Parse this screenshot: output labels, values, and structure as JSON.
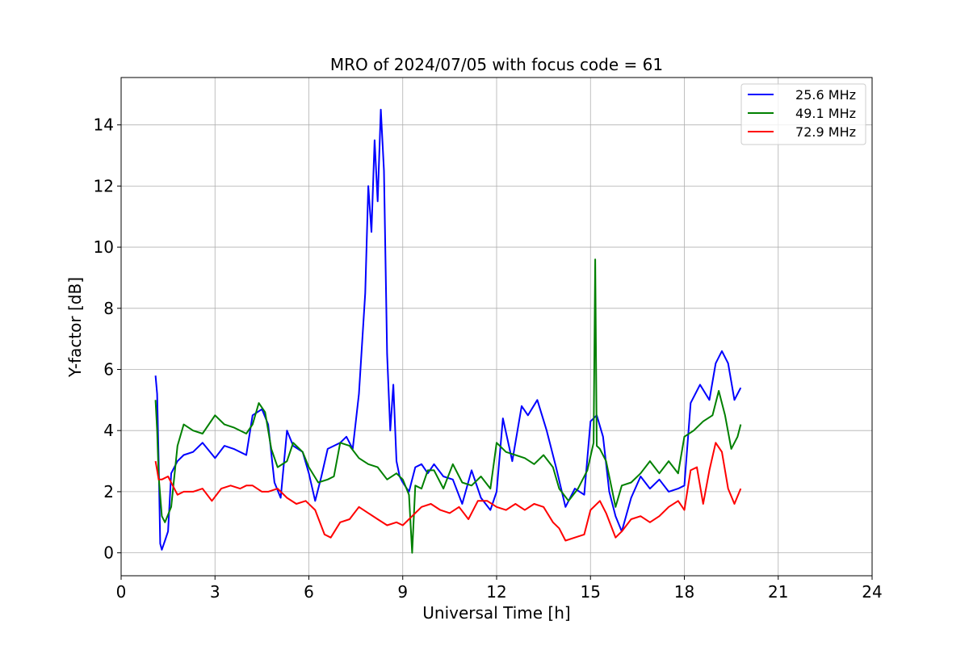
{
  "chart_data": {
    "type": "line",
    "title": "MRO of 2024/07/05 with focus code = 61",
    "xlabel": "Universal Time [h]",
    "ylabel": "Y-factor [dB]",
    "xlim": [
      0,
      24
    ],
    "ylim": [
      -0.75,
      15.55
    ],
    "xticks": [
      0,
      3,
      6,
      9,
      12,
      15,
      18,
      21,
      24
    ],
    "yticks": [
      0,
      2,
      4,
      6,
      8,
      10,
      12,
      14
    ],
    "grid": true,
    "legend_position": "top-right",
    "series": [
      {
        "name": "25.6 MHz",
        "color": "#0000ff",
        "x": [
          1.1,
          1.15,
          1.2,
          1.25,
          1.3,
          1.4,
          1.5,
          1.6,
          1.8,
          2.0,
          2.3,
          2.6,
          3.0,
          3.3,
          3.6,
          4.0,
          4.2,
          4.5,
          4.7,
          4.9,
          5.1,
          5.3,
          5.5,
          5.8,
          6.0,
          6.2,
          6.4,
          6.6,
          6.8,
          7.0,
          7.2,
          7.4,
          7.6,
          7.8,
          7.9,
          8.0,
          8.1,
          8.2,
          8.3,
          8.4,
          8.5,
          8.6,
          8.7,
          8.8,
          8.9,
          9.0,
          9.2,
          9.4,
          9.6,
          9.8,
          10.0,
          10.3,
          10.6,
          10.9,
          11.2,
          11.5,
          11.8,
          12.0,
          12.2,
          12.5,
          12.8,
          13.0,
          13.3,
          13.6,
          13.9,
          14.2,
          14.5,
          14.8,
          15.0,
          15.2,
          15.4,
          15.6,
          15.8,
          16.0,
          16.3,
          16.6,
          16.9,
          17.2,
          17.5,
          17.8,
          18.0,
          18.2,
          18.5,
          18.8,
          19.0,
          19.2,
          19.4,
          19.6,
          19.8
        ],
        "values": [
          5.8,
          5.2,
          3.0,
          0.3,
          0.1,
          0.4,
          0.7,
          2.6,
          3.0,
          3.2,
          3.3,
          3.6,
          3.1,
          3.5,
          3.4,
          3.2,
          4.5,
          4.7,
          4.2,
          2.3,
          1.8,
          4.0,
          3.5,
          3.3,
          2.6,
          1.7,
          2.5,
          3.4,
          3.5,
          3.6,
          3.8,
          3.4,
          5.2,
          8.5,
          12.0,
          10.5,
          13.5,
          11.5,
          14.5,
          12.5,
          6.5,
          4.0,
          5.5,
          3.0,
          2.5,
          2.3,
          2.0,
          2.8,
          2.9,
          2.6,
          2.9,
          2.5,
          2.4,
          1.6,
          2.7,
          1.8,
          1.4,
          2.0,
          4.4,
          3.0,
          4.8,
          4.5,
          5.0,
          4.0,
          2.8,
          1.5,
          2.1,
          1.9,
          4.3,
          4.5,
          3.8,
          2.0,
          1.2,
          0.7,
          1.8,
          2.5,
          2.1,
          2.4,
          2.0,
          2.1,
          2.2,
          4.9,
          5.5,
          5.0,
          6.2,
          6.6,
          6.2,
          5.0,
          5.4
        ]
      },
      {
        "name": "49.1 MHz",
        "color": "#008000",
        "x": [
          1.1,
          1.15,
          1.2,
          1.3,
          1.4,
          1.6,
          1.8,
          2.0,
          2.3,
          2.6,
          3.0,
          3.3,
          3.6,
          4.0,
          4.2,
          4.4,
          4.6,
          4.8,
          5.0,
          5.3,
          5.5,
          5.8,
          6.0,
          6.3,
          6.6,
          6.8,
          7.0,
          7.3,
          7.6,
          7.9,
          8.2,
          8.5,
          8.8,
          9.0,
          9.2,
          9.3,
          9.4,
          9.6,
          9.8,
          10.0,
          10.3,
          10.6,
          10.9,
          11.2,
          11.5,
          11.8,
          12.0,
          12.3,
          12.6,
          12.9,
          13.2,
          13.5,
          13.8,
          14.0,
          14.3,
          14.6,
          14.9,
          15.1,
          15.15,
          15.2,
          15.3,
          15.5,
          15.8,
          16.0,
          16.3,
          16.6,
          16.9,
          17.2,
          17.5,
          17.8,
          18.0,
          18.3,
          18.6,
          18.9,
          19.1,
          19.3,
          19.5,
          19.7,
          19.8
        ],
        "values": [
          5.0,
          4.0,
          2.5,
          1.2,
          1.0,
          1.5,
          3.5,
          4.2,
          4.0,
          3.9,
          4.5,
          4.2,
          4.1,
          3.9,
          4.2,
          4.9,
          4.6,
          3.4,
          2.8,
          3.0,
          3.6,
          3.3,
          2.8,
          2.3,
          2.4,
          2.5,
          3.6,
          3.5,
          3.1,
          2.9,
          2.8,
          2.4,
          2.6,
          2.4,
          1.9,
          0.0,
          2.2,
          2.1,
          2.7,
          2.7,
          2.1,
          2.9,
          2.3,
          2.2,
          2.5,
          2.1,
          3.6,
          3.3,
          3.2,
          3.1,
          2.9,
          3.2,
          2.8,
          2.1,
          1.7,
          2.1,
          2.7,
          3.6,
          9.6,
          3.5,
          3.4,
          3.0,
          1.5,
          2.2,
          2.3,
          2.6,
          3.0,
          2.6,
          3.0,
          2.6,
          3.8,
          4.0,
          4.3,
          4.5,
          5.3,
          4.5,
          3.4,
          3.8,
          4.2
        ]
      },
      {
        "name": "72.9 MHz",
        "color": "#ff0000",
        "x": [
          1.1,
          1.15,
          1.2,
          1.3,
          1.5,
          1.8,
          2.0,
          2.3,
          2.6,
          2.9,
          3.2,
          3.5,
          3.8,
          4.0,
          4.2,
          4.5,
          4.7,
          5.0,
          5.3,
          5.6,
          5.9,
          6.2,
          6.5,
          6.7,
          7.0,
          7.3,
          7.6,
          7.9,
          8.2,
          8.5,
          8.8,
          9.0,
          9.3,
          9.6,
          9.9,
          10.2,
          10.5,
          10.8,
          11.1,
          11.4,
          11.7,
          12.0,
          12.3,
          12.6,
          12.9,
          13.2,
          13.5,
          13.8,
          14.0,
          14.2,
          14.5,
          14.8,
          15.0,
          15.3,
          15.5,
          15.8,
          16.0,
          16.3,
          16.6,
          16.9,
          17.2,
          17.5,
          17.8,
          18.0,
          18.2,
          18.4,
          18.6,
          18.8,
          19.0,
          19.2,
          19.4,
          19.6,
          19.8
        ],
        "values": [
          3.0,
          2.7,
          2.4,
          2.4,
          2.5,
          1.9,
          2.0,
          2.0,
          2.1,
          1.7,
          2.1,
          2.2,
          2.1,
          2.2,
          2.2,
          2.0,
          2.0,
          2.1,
          1.8,
          1.6,
          1.7,
          1.4,
          0.6,
          0.5,
          1.0,
          1.1,
          1.5,
          1.3,
          1.1,
          0.9,
          1.0,
          0.9,
          1.2,
          1.5,
          1.6,
          1.4,
          1.3,
          1.5,
          1.1,
          1.7,
          1.7,
          1.5,
          1.4,
          1.6,
          1.4,
          1.6,
          1.5,
          1.0,
          0.8,
          0.4,
          0.5,
          0.6,
          1.4,
          1.7,
          1.3,
          0.5,
          0.7,
          1.1,
          1.2,
          1.0,
          1.2,
          1.5,
          1.7,
          1.4,
          2.7,
          2.8,
          1.6,
          2.7,
          3.6,
          3.3,
          2.1,
          1.6,
          2.1
        ]
      }
    ]
  }
}
